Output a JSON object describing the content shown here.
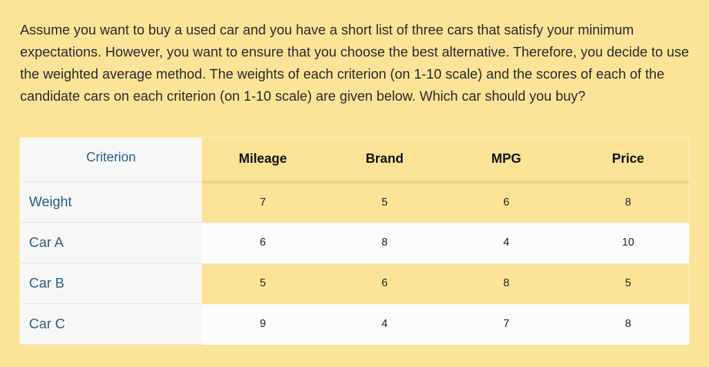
{
  "question": "Assume you want to buy a used car and you have a short list of three cars that satisfy your minimum expectations. However, you want to ensure that you choose the best alternative. Therefore, you decide to use the weighted average method. The weights of each criterion (on 1-10 scale) and the scores of each of the candidate cars on each criterion (on 1-10 scale) are given below. Which car should you buy?",
  "table": {
    "header_first": "Criterion",
    "headers": [
      "Mileage",
      "Brand",
      "MPG",
      "Price"
    ],
    "rows": [
      {
        "label": "Weight",
        "values": [
          "7",
          "5",
          "6",
          "8"
        ]
      },
      {
        "label": "Car A",
        "values": [
          "6",
          "8",
          "4",
          "10"
        ]
      },
      {
        "label": "Car B",
        "values": [
          "5",
          "6",
          "8",
          "5"
        ]
      },
      {
        "label": "Car C",
        "values": [
          "9",
          "4",
          "7",
          "8"
        ]
      }
    ]
  },
  "colors": {
    "background": "#fbe498",
    "label_text": "#2e5e86",
    "alt_row": "#fbfafc"
  }
}
